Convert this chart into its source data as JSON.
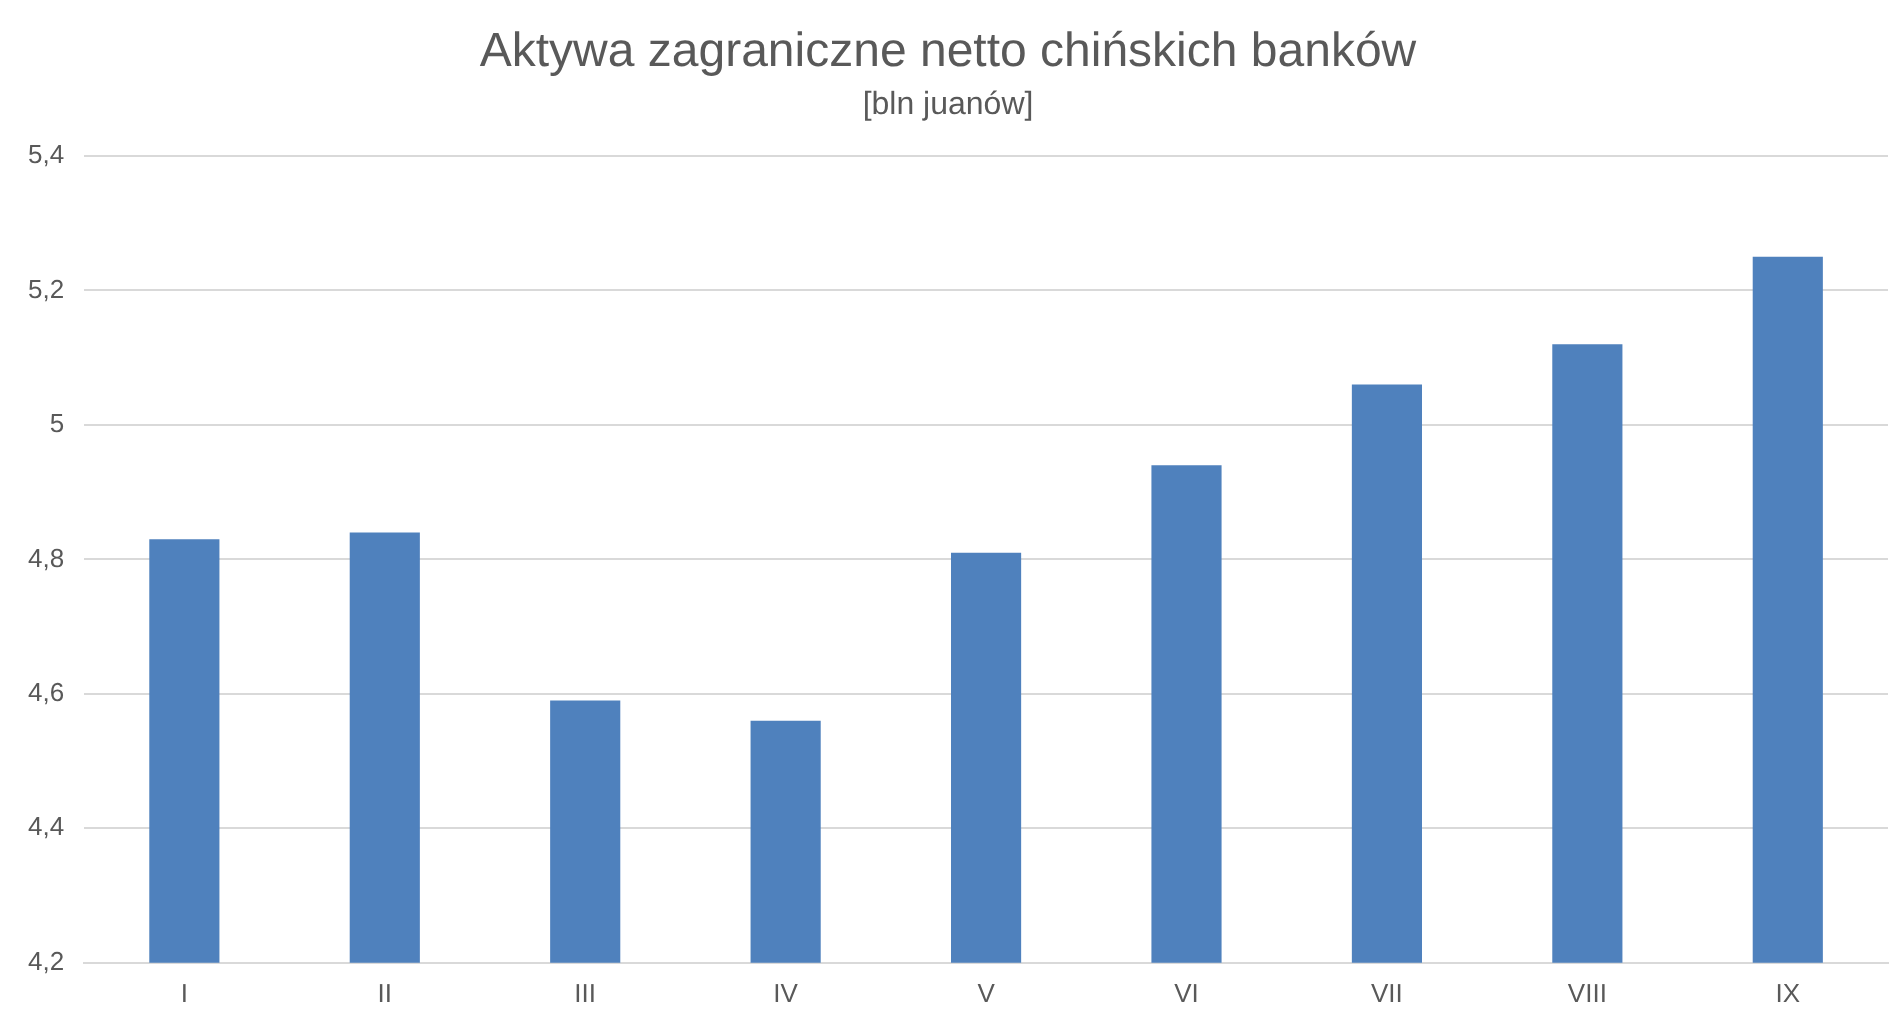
{
  "chart_data": {
    "type": "bar",
    "title": "Aktywa zagraniczne netto chińskich banków",
    "subtitle": "[bln juanów]",
    "categories": [
      "I",
      "II",
      "III",
      "IV",
      "V",
      "VI",
      "VII",
      "VIII",
      "IX"
    ],
    "values": [
      4.83,
      4.84,
      4.59,
      4.56,
      4.81,
      4.94,
      5.06,
      5.12,
      5.25
    ],
    "color": "#4f81bd",
    "ylim": [
      4.2,
      5.4
    ],
    "yticks": [
      {
        "value": 4.2,
        "label": "4,2"
      },
      {
        "value": 4.4,
        "label": "4,4"
      },
      {
        "value": 4.6,
        "label": "4,6"
      },
      {
        "value": 4.8,
        "label": "4,8"
      },
      {
        "value": 5,
        "label": "5"
      },
      {
        "value": 5.2,
        "label": "5,2"
      },
      {
        "value": 5.4,
        "label": "5,4"
      }
    ],
    "grid": "y"
  }
}
